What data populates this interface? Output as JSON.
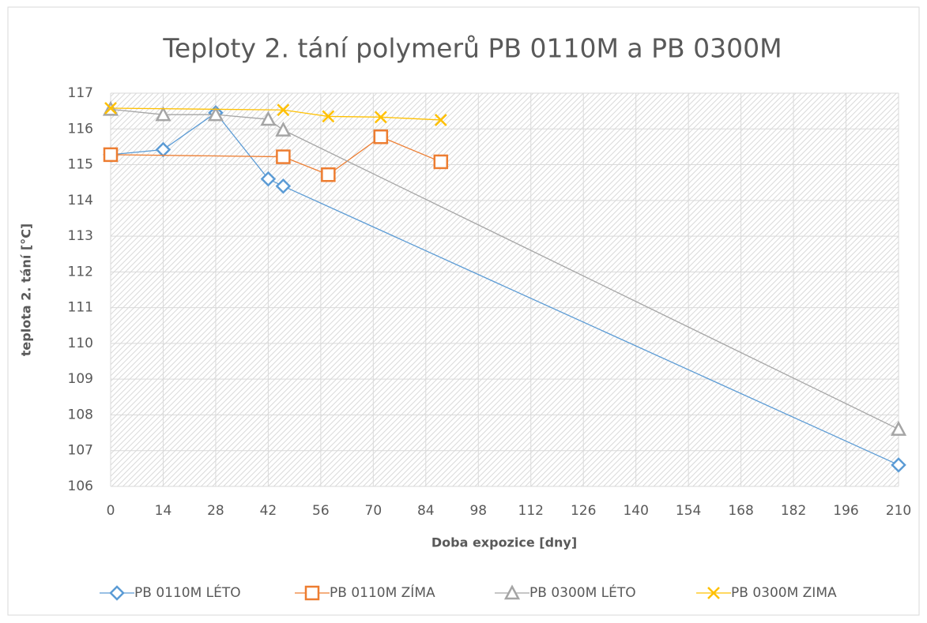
{
  "chart_data": {
    "type": "line",
    "title": "Teploty 2. tání polymerů PB 0110M a PB 0300M",
    "xlabel": "Doba expozice [dny]",
    "ylabel": "teplota 2. tání [°C]",
    "xlim": [
      0,
      210
    ],
    "xticks": [
      0,
      14,
      28,
      42,
      56,
      70,
      84,
      98,
      112,
      126,
      140,
      154,
      168,
      182,
      196,
      210
    ],
    "ylim": [
      106,
      117
    ],
    "yticks": [
      106,
      107,
      108,
      109,
      110,
      111,
      112,
      113,
      114,
      115,
      116,
      117
    ],
    "grid": true,
    "legend": "bottom",
    "series": [
      {
        "name": "PB 0110M LÉTO",
        "color": "#5b9bd5",
        "marker": "diamond",
        "x": [
          0,
          14,
          28,
          42,
          46,
          210
        ],
        "values": [
          115.28,
          115.42,
          116.45,
          114.6,
          114.4,
          106.6
        ]
      },
      {
        "name": "PB 0110M ZÍMA",
        "color": "#ed7d31",
        "marker": "square",
        "x": [
          0,
          46,
          58,
          72,
          88
        ],
        "values": [
          115.28,
          115.22,
          114.72,
          115.78,
          115.08
        ]
      },
      {
        "name": "PB 0300M LÉTO",
        "color": "#a5a5a5",
        "marker": "triangle",
        "x": [
          0,
          14,
          28,
          42,
          46,
          210
        ],
        "values": [
          116.55,
          116.4,
          116.4,
          116.27,
          115.97,
          107.6
        ]
      },
      {
        "name": "PB 0300M ZIMA",
        "color": "#ffc000",
        "marker": "x",
        "x": [
          0,
          46,
          58,
          72,
          88
        ],
        "values": [
          116.58,
          116.53,
          116.35,
          116.33,
          116.25
        ]
      }
    ]
  }
}
